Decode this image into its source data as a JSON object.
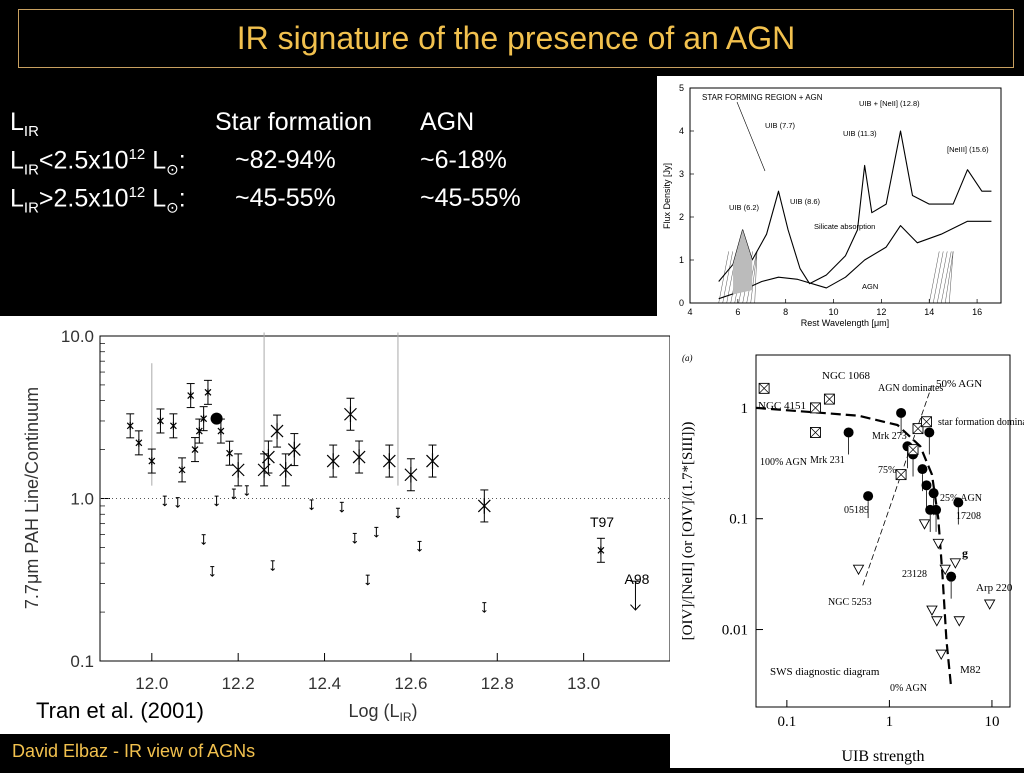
{
  "slide": {
    "title": "IR signature of the presence of an AGN",
    "footer": "David Elbaz - IR view of AGNs",
    "table": {
      "header": {
        "col0_main": "L",
        "col0_sub": "IR",
        "col1": "Star formation",
        "col2": "AGN"
      },
      "rows": [
        {
          "l": "L",
          "sub": "IR",
          "cmp": "<2.5x10",
          "exp": "12",
          "unit": " L",
          "sun": "⊙",
          "colon": ":",
          "sf": "~82-94%",
          "agn": "~6-18%"
        },
        {
          "l": "L",
          "sub": "IR",
          "cmp": ">2.5x10",
          "exp": "12",
          "unit": " L",
          "sun": "⊙",
          "colon": ":",
          "sf": "~45-55%",
          "agn": "~45-55%"
        }
      ]
    }
  },
  "chart_data": [
    {
      "type": "line",
      "xlabel": "Rest Wavelength [μm]",
      "ylabel": "Flux Density [Jy]",
      "xlim": [
        4,
        17
      ],
      "ylim": [
        0,
        5
      ],
      "xticks": [
        "4",
        "6",
        "8",
        "10",
        "12",
        "14",
        "16"
      ],
      "yticks": [
        "0",
        "1",
        "2",
        "3",
        "4",
        "5"
      ],
      "legend_text": "STAR FORMING REGION + AGN",
      "annotations": [
        "UIB (7.7)",
        "UIB + [NeII] (12.8)",
        "UIB (11.3)",
        "[NeIII] (15.6)",
        "UIB (8.6)",
        "UIB (6.2)",
        "Silicate absorption",
        "AGN"
      ],
      "series": [
        {
          "values_x": [
            5.2,
            5.8,
            6.2,
            6.6,
            7.2,
            7.7,
            8.1,
            8.6,
            9.0,
            9.7,
            10.5,
            11.0,
            11.3,
            11.6,
            12.2,
            12.8,
            13.3,
            14.0,
            15.0,
            15.6,
            16.2,
            16.6
          ],
          "values_y": [
            0.5,
            0.9,
            1.7,
            1.0,
            1.6,
            2.6,
            1.7,
            0.8,
            0.45,
            0.65,
            1.1,
            1.7,
            3.2,
            2.1,
            2.3,
            4.0,
            2.5,
            2.3,
            2.3,
            3.1,
            2.6,
            2.6
          ]
        },
        {
          "values_x": [
            5.2,
            6.0,
            7.0,
            7.7,
            8.5,
            9.7,
            10.5,
            11.3,
            12.2,
            12.8,
            13.5,
            14.5,
            15.6,
            16.6
          ],
          "values_y": [
            0.1,
            0.25,
            0.5,
            0.6,
            0.55,
            0.35,
            0.6,
            1.0,
            1.3,
            1.8,
            1.4,
            1.6,
            1.9,
            1.9
          ]
        }
      ]
    },
    {
      "type": "scatter",
      "xlabel": "Log (L",
      "xlabel_sub": "IR",
      "xlabel_end": ")",
      "ylabel": "7.7μm PAH Line/Continuum",
      "ylog": true,
      "xlim": [
        11.88,
        13.2
      ],
      "ylim": [
        0.1,
        10.0
      ],
      "xticks": [
        "12.0",
        "12.2",
        "12.4",
        "12.6",
        "12.8",
        "13.0"
      ],
      "yticks": [
        "0.1",
        "1.0",
        "10.0"
      ],
      "reference_line_y": 1.0,
      "labels": [
        "T97",
        "A98"
      ],
      "caption": "Tran et al. (2001)",
      "series": [
        {
          "name": "detections",
          "x": [
            11.95,
            11.97,
            12.0,
            12.02,
            12.05,
            12.07,
            12.09,
            12.1,
            12.11,
            12.12,
            12.13,
            12.16,
            12.18,
            12.2,
            12.26,
            12.27,
            12.29,
            12.31,
            12.33,
            12.42,
            12.46,
            12.48,
            12.55,
            12.6,
            12.65,
            12.77,
            13.04
          ],
          "y": [
            2.8,
            2.2,
            1.7,
            3.0,
            2.8,
            1.5,
            4.3,
            2.0,
            2.6,
            3.1,
            4.5,
            2.6,
            1.9,
            1.5,
            1.5,
            1.8,
            2.6,
            1.5,
            2.0,
            1.7,
            3.3,
            1.8,
            1.7,
            1.4,
            1.7,
            0.9,
            0.48
          ]
        },
        {
          "name": "upper_limits",
          "x": [
            12.03,
            12.06,
            12.12,
            12.14,
            12.15,
            12.19,
            12.22,
            12.28,
            12.37,
            12.44,
            12.47,
            12.5,
            12.52,
            12.57,
            12.62,
            12.77,
            13.12
          ],
          "y": [
            0.95,
            0.93,
            0.55,
            0.35,
            0.95,
            1.05,
            1.1,
            0.38,
            0.9,
            0.87,
            0.56,
            0.31,
            0.61,
            0.8,
            0.5,
            0.21,
            0.24
          ]
        }
      ]
    },
    {
      "type": "scatter",
      "panel_label": "(a)",
      "xlabel": "UIB strength",
      "ylabel": "[OIV]/[NeII] (or [OIV]/(1.7*[SIII]))",
      "xlog": true,
      "ylog": true,
      "xlim": [
        0.05,
        15
      ],
      "ylim": [
        0.002,
        3
      ],
      "xticks": [
        "0.1",
        "1",
        "10"
      ],
      "yticks": [
        "0.01",
        "0.1",
        "1"
      ],
      "annotations": [
        "NGC 1068",
        "NGC 4151",
        "AGN dominates",
        "50% AGN",
        "star formation dominates",
        "Mrk 273",
        "100% AGN",
        "Mrk 231",
        "75%",
        "25% AGN",
        "05189",
        "17208",
        "g",
        "23128",
        "Arp 220",
        "NGC 5253",
        "M82",
        "SWS diagnostic diagram",
        "0% AGN"
      ],
      "series": [
        {
          "name": "filled",
          "x": [
            0.4,
            0.62,
            1.3,
            1.5,
            1.7,
            2.1,
            2.3,
            2.5,
            2.7,
            2.85,
            2.45,
            4.7,
            4.0
          ],
          "y": [
            0.6,
            0.16,
            0.9,
            0.45,
            0.38,
            0.28,
            0.2,
            0.12,
            0.17,
            0.12,
            0.6,
            0.14,
            0.03
          ]
        },
        {
          "name": "open-triangles",
          "x": [
            0.5,
            2.2,
            3.0,
            3.5,
            4.4,
            2.6,
            2.9,
            3.2,
            4.8,
            9.5
          ],
          "y": [
            0.035,
            0.09,
            0.06,
            0.035,
            0.04,
            0.015,
            0.012,
            0.006,
            0.012,
            0.017
          ]
        },
        {
          "name": "open-squares",
          "x": [
            0.06,
            0.19,
            0.26,
            0.19,
            1.3,
            1.7,
            1.9,
            2.3
          ],
          "y": [
            1.5,
            1.0,
            1.2,
            0.6,
            0.25,
            0.42,
            0.65,
            0.75
          ]
        }
      ]
    }
  ]
}
